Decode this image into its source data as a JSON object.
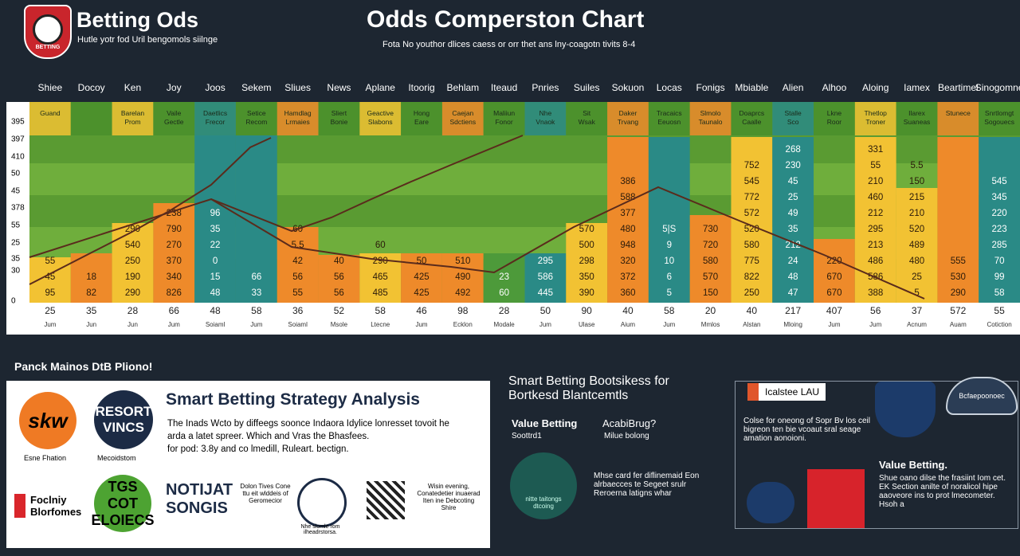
{
  "header": {
    "logo": "BETTING",
    "title": "Betting Ods",
    "tagline": "Hutle yotr fod Uril bengomols siilnge",
    "chart_title": "Odds Comperston Chart",
    "chart_subtitle": "Fota No youthor dlices caess or orr thet ans lny-coagotn tivits 8-4"
  },
  "comparison": {
    "y_labels": [
      "395",
      "397",
      "410",
      "50",
      "45",
      "378",
      "55",
      "25",
      "35",
      "30",
      "0"
    ],
    "columns": [
      {
        "header": "Shiee",
        "sub": "Guand",
        "color": "#f2c233",
        "cells": [
          "95",
          "45",
          "55"
        ],
        "total": "25",
        "date": "Jum"
      },
      {
        "header": "Docoy",
        "color": "#ee8a2a",
        "cells": [
          "82",
          "18"
        ],
        "total": "35",
        "date": "Jun"
      },
      {
        "header": "Ken",
        "sub": "Barelan Prom",
        "color": "#f2c233",
        "cells": [
          "290",
          "190",
          "250",
          "540",
          "290"
        ],
        "total": "28",
        "date": "Jun"
      },
      {
        "header": "Joy",
        "sub": "Vaile Gectle",
        "color": "#ee8a2a",
        "cells": [
          "826",
          "340",
          "370",
          "270",
          "790",
          "238"
        ],
        "total": "66",
        "date": "Jum"
      },
      {
        "header": "Joos",
        "sub": "Daetlics Frecor",
        "color": "#2a8a86",
        "cells": [
          "48",
          "15",
          "0",
          "22",
          "35",
          "96"
        ],
        "total": "48",
        "date": "Soiaml"
      },
      {
        "header": "Sekem",
        "sub": "Setice Recom",
        "color": "#2a8a86",
        "cells": [
          "33",
          "66"
        ],
        "total": "58",
        "date": "Jum"
      },
      {
        "header": "Sliues",
        "sub": "Hamdlag Lrmaies",
        "color": "#ee8a2a",
        "cells": [
          "55",
          "56",
          "42",
          "5.5",
          "60"
        ],
        "total": "36",
        "date": "Soiaml"
      },
      {
        "header": "News",
        "sub": "Sliert Bonie",
        "color": "#ee8a2a",
        "cells": [
          "56",
          "56",
          "40"
        ],
        "total": "52",
        "date": "Msole"
      },
      {
        "header": "Aplane",
        "sub": "Geactive Slabons",
        "color": "#f2c233",
        "cells": [
          "485",
          "465",
          "290",
          "60"
        ],
        "total": "58",
        "date": "Ltecne"
      },
      {
        "header": "Itoorig",
        "sub": "Hong Eare",
        "color": "#ee8a2a",
        "cells": [
          "425",
          "425",
          "50"
        ],
        "total": "46",
        "date": "Jum"
      },
      {
        "header": "Behlam",
        "sub": "Caejan Sdctiens",
        "color": "#ee8a2a",
        "cells": [
          "492",
          "490",
          "510"
        ],
        "total": "98",
        "date": "Ecklon"
      },
      {
        "header": "Iteaud",
        "sub": "Maliiun Fonor",
        "color": "#4d9a3a",
        "cells": [
          "60",
          "23"
        ],
        "total": "28",
        "date": "Modale"
      },
      {
        "header": "Pnries",
        "sub": "Nhe Vnaok",
        "color": "#2a8a86",
        "cells": [
          "445",
          "586",
          "295"
        ],
        "total": "50",
        "date": "Jum"
      },
      {
        "header": "Suiles",
        "sub": "Sit Wsak",
        "color": "#f2c233",
        "cells": [
          "390",
          "350",
          "298",
          "500",
          "570"
        ],
        "total": "90",
        "date": "Ulase"
      },
      {
        "header": "Sokuon",
        "sub": "Daker Trvang",
        "color": "#ee8a2a",
        "cells": [
          "360",
          "372",
          "320",
          "948",
          "480",
          "377",
          "588",
          "386"
        ],
        "total": "40",
        "date": "Aium"
      },
      {
        "header": "Locas",
        "sub": "Tracaics Eeuosn",
        "color": "#2a8a86",
        "cells": [
          "5",
          "6",
          "10",
          "9",
          "5|S"
        ],
        "total": "58",
        "date": "Jum"
      },
      {
        "header": "Fonigs",
        "sub": "Slmolo Taunalo",
        "color": "#ee8a2a",
        "cells": [
          "150",
          "570",
          "580",
          "720",
          "730"
        ],
        "total": "20",
        "date": "Mmlos"
      },
      {
        "header": "Mbiable",
        "sub": "Doaprcs Caalle",
        "color": "#f2c233",
        "cells": [
          "250",
          "822",
          "775",
          "580",
          "520",
          "572",
          "772",
          "545",
          "752"
        ],
        "total": "40",
        "date": "Alstan"
      },
      {
        "header": "Alien",
        "sub": "Stalle Sco",
        "color": "#2a8a86",
        "cells": [
          "47",
          "48",
          "24",
          "212",
          "35",
          "49",
          "25",
          "45",
          "230",
          "268"
        ],
        "total": "217",
        "date": "Mloing"
      },
      {
        "header": "Alhoo",
        "sub": "Lkne Roor",
        "color": "#ee8a2a",
        "cells": [
          "670",
          "670",
          "220"
        ],
        "total": "407",
        "date": "Jum"
      },
      {
        "header": "Aloing",
        "sub": "Thetlop Troner",
        "color": "#f2c233",
        "cells": [
          "388",
          "586",
          "486",
          "213",
          "295",
          "212",
          "460",
          "210",
          "55",
          "331"
        ],
        "total": "56",
        "date": "Jum"
      },
      {
        "header": "Iamex",
        "sub": "Ilarex Suaneas",
        "color": "#f2c233",
        "cells": [
          "5",
          "25",
          "480",
          "489",
          "520",
          "210",
          "215",
          "150",
          "5.5"
        ],
        "total": "37",
        "date": "Acnum"
      },
      {
        "header": "Beartimel",
        "sub": "Stunece",
        "color": "#ee8a2a",
        "cells": [
          "290",
          "530",
          "555"
        ],
        "total": "572",
        "date": "Auam"
      },
      {
        "header": "Sinogomne",
        "sub": "Snrtlomgt Sogouecs",
        "color": "#2a8a86",
        "cells": [
          "58",
          "99",
          "70",
          "285",
          "223",
          "220",
          "345",
          "545"
        ],
        "total": "55",
        "date": "Cotiction"
      }
    ]
  },
  "left_panel": {
    "heading": "Panck Mainos DtB Pliono!",
    "title": "Smart Betting Strategy Analysis",
    "paragraph": [
      "The Inads Wcto by diffeegs soonce Indaora Idylice lonresset tovoit he",
      "arda a latet spreer. Which and Vras the Bhasfees.",
      "for pod: 3.8y and co lmedill, Ruleart. bectign."
    ],
    "logo1": "skw",
    "logo1_caption": "Esne Fhation",
    "logo2": "RESORT VINCS",
    "logo2_caption": "Mecoidstom",
    "logo3": "Foclniy Blorfomes",
    "logo4": "TGS COT ELOIECS",
    "logo5": "NOTIJAT SONGIS",
    "note1": "Dolon Tives Cone ttu eit wlddeis of Geromecior",
    "note2": "Nhe slomle rom ilheadrstorsa.",
    "note3": "Wisin evening, Conatedetier inuaerad Iten ine Debcoting Shire"
  },
  "middle_panel": {
    "title": "Smart Betting Bootsikess for Bortkesd Blantcemtls",
    "item1": "Value Betting",
    "item1_sub": "Soottrd1",
    "item2": "AcabiBrug?",
    "item2_sub": "Milue bolong",
    "circle_text": "nitte taitongs dtcoing",
    "text": "Mhse card fer diflinemaid Eon alrbaecces te Segeet srulr Reroerna latigns whar"
  },
  "right_panel": {
    "badge": "Icalstee LAU",
    "shield": "Bcfaepoonoec",
    "text": "Colse for oneong of Sopr Bv los ceil bigreon ten bie vcoaut sral seage amation aonoioni.",
    "subtitle": "Value Betting.",
    "text2": "Shue oano dilse the frasiint Iom cet. EK Section anilte of noralicol hipe aaoveore ins to prot lmecometer. Hsoh a"
  }
}
